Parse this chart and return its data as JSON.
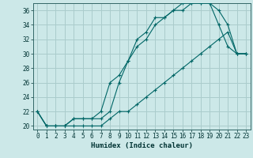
{
  "xlabel": "Humidex (Indice chaleur)",
  "background_color": "#cce8e8",
  "grid_color": "#aacccc",
  "line_color": "#006666",
  "xlim": [
    -0.5,
    23.5
  ],
  "ylim": [
    19.5,
    37.0
  ],
  "xticks": [
    0,
    1,
    2,
    3,
    4,
    5,
    6,
    7,
    8,
    9,
    10,
    11,
    12,
    13,
    14,
    15,
    16,
    17,
    18,
    19,
    20,
    21,
    22,
    23
  ],
  "yticks": [
    20,
    22,
    24,
    26,
    28,
    30,
    32,
    34,
    36
  ],
  "line1_x": [
    0,
    1,
    2,
    3,
    4,
    5,
    6,
    7,
    8,
    9,
    10,
    11,
    12,
    13,
    14,
    15,
    16,
    17,
    18,
    19,
    20,
    21,
    22,
    23
  ],
  "line1_y": [
    22,
    20,
    20,
    20,
    21,
    21,
    21,
    21,
    22,
    26,
    29,
    32,
    33,
    35,
    35,
    36,
    36,
    37,
    37,
    37,
    34,
    31,
    30,
    30
  ],
  "line2_x": [
    0,
    1,
    2,
    3,
    4,
    5,
    6,
    7,
    8,
    9,
    10,
    11,
    12,
    13,
    14,
    15,
    16,
    17,
    18,
    19,
    20,
    21,
    22,
    23
  ],
  "line2_y": [
    22,
    20,
    20,
    20,
    21,
    21,
    21,
    22,
    26,
    27,
    29,
    31,
    32,
    34,
    35,
    36,
    37,
    37,
    37,
    37,
    36,
    34,
    30,
    30
  ],
  "line3_x": [
    0,
    1,
    2,
    3,
    4,
    5,
    6,
    7,
    8,
    9,
    10,
    11,
    12,
    13,
    14,
    15,
    16,
    17,
    18,
    19,
    20,
    21,
    22,
    23
  ],
  "line3_y": [
    22,
    20,
    20,
    20,
    20,
    20,
    20,
    20,
    21,
    22,
    22,
    23,
    24,
    25,
    26,
    27,
    28,
    29,
    30,
    31,
    32,
    33,
    30,
    30
  ]
}
